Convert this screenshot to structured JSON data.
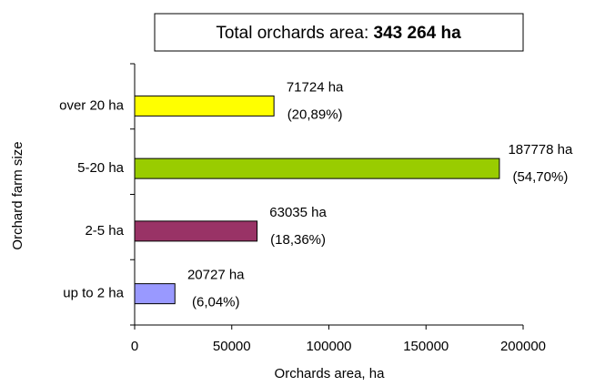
{
  "chart_data": {
    "type": "bar",
    "orientation": "horizontal",
    "title": "Total orchards area:",
    "title_value": "343 264 ha",
    "xlabel": "Orchards area, ha",
    "ylabel": "Orchard farm size",
    "categories": [
      "over 20 ha",
      "5-20 ha",
      "2-5 ha",
      "up to 2 ha"
    ],
    "values": [
      71724,
      187778,
      63035,
      20727
    ],
    "value_labels": [
      "71724 ha",
      "187778 ha",
      "63035 ha",
      "20727 ha"
    ],
    "share_labels": [
      "(20,89%)",
      "(54,70%)",
      "(18,36%)",
      "(6,04%)"
    ],
    "colors": [
      "#ffff00",
      "#99cc00",
      "#993366",
      "#9999ff"
    ],
    "xlim": [
      0,
      200000
    ],
    "xticks": [
      0,
      50000,
      100000,
      150000,
      200000
    ],
    "grid": false
  }
}
